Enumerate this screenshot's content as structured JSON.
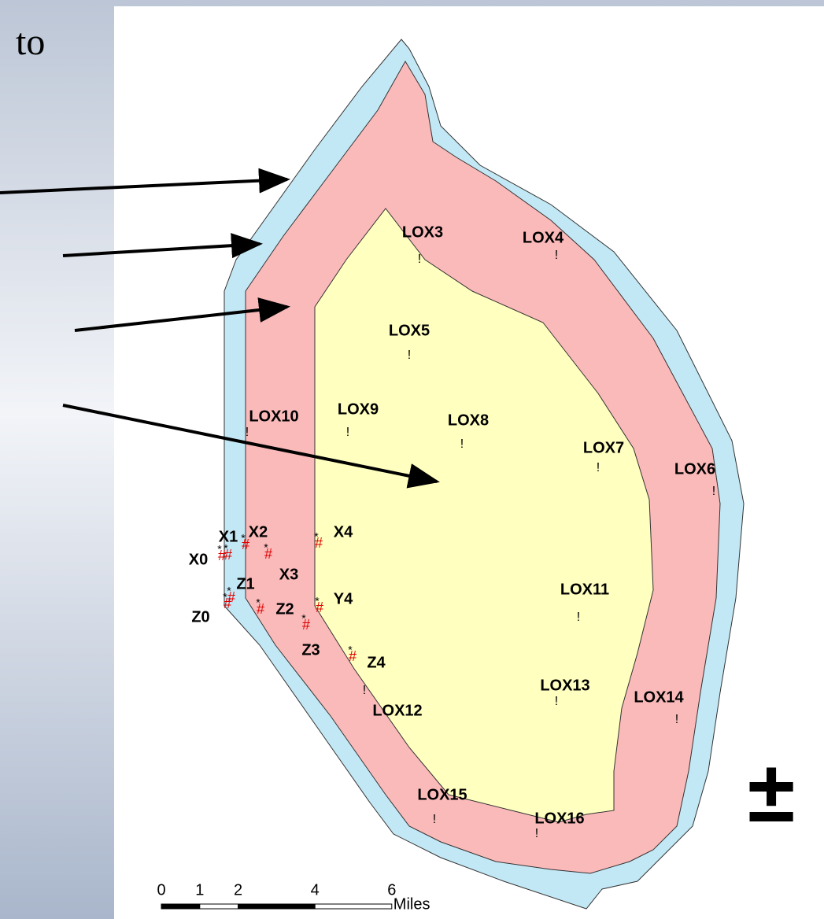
{
  "slide_text": "to",
  "markers": {
    "station": "!",
    "sample": "#",
    "sample_point": "*"
  },
  "stations": [
    {
      "name": "LOX3"
    },
    {
      "name": "LOX4"
    },
    {
      "name": "LOX5"
    },
    {
      "name": "LOX9"
    },
    {
      "name": "LOX10"
    },
    {
      "name": "LOX8"
    },
    {
      "name": "LOX7"
    },
    {
      "name": "LOX6"
    },
    {
      "name": "LOX11"
    },
    {
      "name": "LOX13"
    },
    {
      "name": "LOX12"
    },
    {
      "name": "LOX14"
    },
    {
      "name": "LOX15"
    },
    {
      "name": "LOX16"
    }
  ],
  "samples": [
    {
      "name": "X0"
    },
    {
      "name": "X1"
    },
    {
      "name": "X2"
    },
    {
      "name": "X3"
    },
    {
      "name": "X4"
    },
    {
      "name": "Z0"
    },
    {
      "name": "Z1"
    },
    {
      "name": "Z2"
    },
    {
      "name": "Y4"
    },
    {
      "name": "Z3"
    },
    {
      "name": "Z4"
    }
  ],
  "scale_bar": {
    "ticks": [
      0,
      1,
      2,
      4,
      6
    ],
    "unit": "Miles"
  },
  "north_symbol": "±"
}
